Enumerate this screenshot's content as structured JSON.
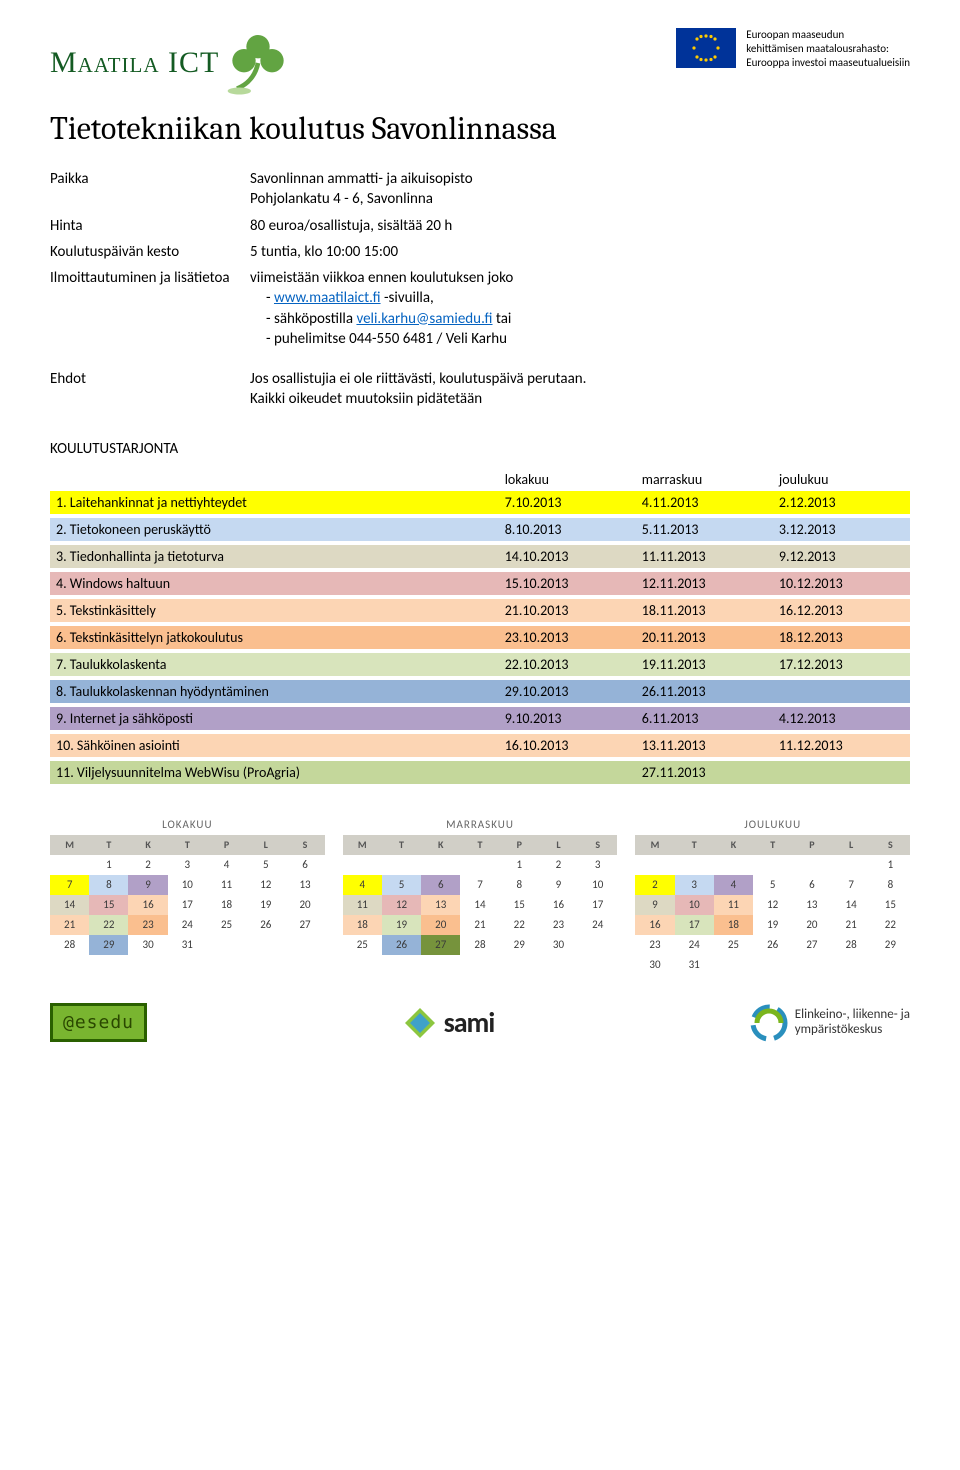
{
  "logo": {
    "brand": "Maatila ICT"
  },
  "eu": {
    "line1": "Euroopan maaseudun",
    "line2": "kehittämisen maatalousrahasto:",
    "line3": "Eurooppa investoi maaseutualueisiin"
  },
  "title": "Tietotekniikan koulutus Savonlinnassa",
  "info": {
    "paikka_label": "Paikka",
    "paikka_val1": "Savonlinnan ammatti- ja aikuisopisto",
    "paikka_val2": "Pohjolankatu 4 - 6, Savonlinna",
    "hinta_label": "Hinta",
    "hinta_val": "80 euroa/osallistuja, sisältää 20 h",
    "kesto_label": "Koulutuspäivän kesto",
    "kesto_val": "5 tuntia, klo 10:00 15:00",
    "ilm_label": "Ilmoittautuminen ja lisätietoa",
    "ilm_l1": "viimeistään viikkoa ennen koulutuksen joko",
    "ilm_link1_pre": "-   ",
    "ilm_link1": "www.maatilaict.fi",
    "ilm_link1_post": " -sivuilla,",
    "ilm_link2_pre": "-   sähköpostilla ",
    "ilm_link2": "veli.karhu@samiedu.fi",
    "ilm_link2_post": " tai",
    "ilm_l4": "-   puhelimitse 044-550 6481 / Veli Karhu",
    "ehdot_label": "Ehdot",
    "ehdot_v1": "Jos osallistujia ei ole riittävästi, koulutuspäivä perutaan.",
    "ehdot_v2": "Kaikki oikeudet muutoksiin pidätetään"
  },
  "tarjonta_h": "KOULUTUSTARJONTA",
  "cols": {
    "c1": "lokakuu",
    "c2": "marraskuu",
    "c3": "joulukuu"
  },
  "rows": [
    {
      "name": "1. Laitehankinnat ja nettiyhteydet",
      "d1": "7.10.2013",
      "d2": "4.11.2013",
      "d3": "2.12.2013",
      "bg": "#ffff00"
    },
    {
      "name": "2. Tietokoneen peruskäyttö",
      "d1": "8.10.2013",
      "d2": "5.11.2013",
      "d3": "3.12.2013",
      "bg": "#c5d9f1"
    },
    {
      "name": "3. Tiedonhallinta ja tietoturva",
      "d1": "14.10.2013",
      "d2": "11.11.2013",
      "d3": "9.12.2013",
      "bg": "#ddd9c3"
    },
    {
      "name": "4. Windows haltuun",
      "d1": "15.10.2013",
      "d2": "12.11.2013",
      "d3": "10.12.2013",
      "bg": "#e6b8b7"
    },
    {
      "name": "5. Tekstinkäsittely",
      "d1": "21.10.2013",
      "d2": "18.11.2013",
      "d3": "16.12.2013",
      "bg": "#fcd5b4"
    },
    {
      "name": "6. Tekstinkäsittelyn jatkokoulutus",
      "d1": "23.10.2013",
      "d2": "20.11.2013",
      "d3": "18.12.2013",
      "bg": "#fabf8f"
    },
    {
      "name": "7. Taulukkolaskenta",
      "d1": "22.10.2013",
      "d2": "19.11.2013",
      "d3": "17.12.2013",
      "bg": "#d8e4bc"
    },
    {
      "name": "8. Taulukkolaskennan hyödyntäminen",
      "d1": "29.10.2013",
      "d2": "26.11.2013",
      "d3": "",
      "bg": "#95b3d7"
    },
    {
      "name": "9. Internet ja sähköposti",
      "d1": "9.10.2013",
      "d2": "6.11.2013",
      "d3": "4.12.2013",
      "bg": "#b1a0c7"
    },
    {
      "name": "10. Sähköinen asiointi",
      "d1": "16.10.2013",
      "d2": "13.11.2013",
      "d3": "11.12.2013",
      "bg": "#fcd5b4"
    },
    {
      "name": "11. Viljelysuunnitelma WebWisu (ProAgria)",
      "d1": "",
      "d2": "27.11.2013",
      "d3": "",
      "bg": "#c4d79b"
    }
  ],
  "cal_dow": [
    "M",
    "T",
    "K",
    "T",
    "P",
    "L",
    "S"
  ],
  "cal_row_colors": {
    "yellow": "#ffff00",
    "blue": "#c5d9f1",
    "tan": "#ddd9c3",
    "rose": "#e6b8b7",
    "peach": "#fcd5b4",
    "orange": "#fabf8f",
    "olive": "#d8e4bc",
    "steel": "#95b3d7",
    "lav": "#b1a0c7",
    "green": "#c4d79b",
    "darkgreen": "#76933c"
  },
  "calendars": [
    {
      "title": "LOKAKUU",
      "weeks": [
        [
          {
            "n": ""
          },
          {
            "n": "1"
          },
          {
            "n": "2"
          },
          {
            "n": "3"
          },
          {
            "n": "4"
          },
          {
            "n": "5"
          },
          {
            "n": "6"
          }
        ],
        [
          {
            "n": "7",
            "c": "yellow"
          },
          {
            "n": "8",
            "c": "blue"
          },
          {
            "n": "9",
            "c": "lav"
          },
          {
            "n": "10"
          },
          {
            "n": "11"
          },
          {
            "n": "12"
          },
          {
            "n": "13"
          }
        ],
        [
          {
            "n": "14",
            "c": "tan"
          },
          {
            "n": "15",
            "c": "rose"
          },
          {
            "n": "16",
            "c": "peach"
          },
          {
            "n": "17"
          },
          {
            "n": "18"
          },
          {
            "n": "19"
          },
          {
            "n": "20"
          }
        ],
        [
          {
            "n": "21",
            "c": "peach"
          },
          {
            "n": "22",
            "c": "olive"
          },
          {
            "n": "23",
            "c": "orange"
          },
          {
            "n": "24"
          },
          {
            "n": "25"
          },
          {
            "n": "26"
          },
          {
            "n": "27"
          }
        ],
        [
          {
            "n": "28"
          },
          {
            "n": "29",
            "c": "steel"
          },
          {
            "n": "30"
          },
          {
            "n": "31"
          },
          {
            "n": ""
          },
          {
            "n": ""
          },
          {
            "n": ""
          }
        ]
      ]
    },
    {
      "title": "MARRASKUU",
      "weeks": [
        [
          {
            "n": ""
          },
          {
            "n": ""
          },
          {
            "n": ""
          },
          {
            "n": ""
          },
          {
            "n": "1"
          },
          {
            "n": "2"
          },
          {
            "n": "3"
          }
        ],
        [
          {
            "n": "4",
            "c": "yellow"
          },
          {
            "n": "5",
            "c": "blue"
          },
          {
            "n": "6",
            "c": "lav"
          },
          {
            "n": "7"
          },
          {
            "n": "8"
          },
          {
            "n": "9"
          },
          {
            "n": "10"
          }
        ],
        [
          {
            "n": "11",
            "c": "tan"
          },
          {
            "n": "12",
            "c": "rose"
          },
          {
            "n": "13",
            "c": "peach"
          },
          {
            "n": "14"
          },
          {
            "n": "15"
          },
          {
            "n": "16"
          },
          {
            "n": "17"
          }
        ],
        [
          {
            "n": "18",
            "c": "peach"
          },
          {
            "n": "19",
            "c": "olive"
          },
          {
            "n": "20",
            "c": "orange"
          },
          {
            "n": "21"
          },
          {
            "n": "22"
          },
          {
            "n": "23"
          },
          {
            "n": "24"
          }
        ],
        [
          {
            "n": "25"
          },
          {
            "n": "26",
            "c": "steel"
          },
          {
            "n": "27",
            "c": "darkgreen"
          },
          {
            "n": "28"
          },
          {
            "n": "29"
          },
          {
            "n": "30"
          },
          {
            "n": ""
          }
        ]
      ]
    },
    {
      "title": "JOULUKUU",
      "weeks": [
        [
          {
            "n": ""
          },
          {
            "n": ""
          },
          {
            "n": ""
          },
          {
            "n": ""
          },
          {
            "n": ""
          },
          {
            "n": ""
          },
          {
            "n": "1"
          }
        ],
        [
          {
            "n": "2",
            "c": "yellow"
          },
          {
            "n": "3",
            "c": "blue"
          },
          {
            "n": "4",
            "c": "lav"
          },
          {
            "n": "5"
          },
          {
            "n": "6"
          },
          {
            "n": "7"
          },
          {
            "n": "8"
          }
        ],
        [
          {
            "n": "9",
            "c": "tan"
          },
          {
            "n": "10",
            "c": "rose"
          },
          {
            "n": "11",
            "c": "peach"
          },
          {
            "n": "12"
          },
          {
            "n": "13"
          },
          {
            "n": "14"
          },
          {
            "n": "15"
          }
        ],
        [
          {
            "n": "16",
            "c": "peach"
          },
          {
            "n": "17",
            "c": "olive"
          },
          {
            "n": "18",
            "c": "orange"
          },
          {
            "n": "19"
          },
          {
            "n": "20"
          },
          {
            "n": "21"
          },
          {
            "n": "22"
          }
        ],
        [
          {
            "n": "23"
          },
          {
            "n": "24"
          },
          {
            "n": "25"
          },
          {
            "n": "26"
          },
          {
            "n": "27"
          },
          {
            "n": "28"
          },
          {
            "n": "29"
          }
        ],
        [
          {
            "n": "30"
          },
          {
            "n": "31"
          },
          {
            "n": ""
          },
          {
            "n": ""
          },
          {
            "n": ""
          },
          {
            "n": ""
          },
          {
            "n": ""
          }
        ]
      ]
    }
  ],
  "footer": {
    "esedu": "@esedu",
    "sami": "sami",
    "ely1": "Elinkeino-, liikenne- ja",
    "ely2": "ympäristökeskus"
  }
}
